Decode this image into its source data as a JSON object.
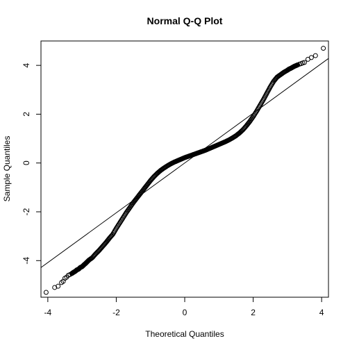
{
  "chart_data": {
    "type": "scatter",
    "title": "Normal Q-Q Plot",
    "xlabel": "Theoretical Quantiles",
    "ylabel": "Sample Quantiles",
    "xlim": [
      -4.2,
      4.2
    ],
    "ylim": [
      -5.5,
      5.0
    ],
    "x_ticks": [
      -4,
      -2,
      0,
      2,
      4
    ],
    "x_tick_labels": [
      "-4",
      "-2",
      "0",
      "2",
      "4"
    ],
    "y_ticks": [
      -4,
      -2,
      0,
      2,
      4
    ],
    "y_tick_labels": [
      "-4",
      "-2",
      "0",
      "2",
      "4"
    ],
    "reference_line": {
      "intercept": 0.0,
      "slope": 1.02
    },
    "grid": false,
    "legend": "none",
    "points": [
      [
        -4.05,
        -5.3
      ],
      [
        -3.8,
        -5.1
      ],
      [
        -3.7,
        -5.05
      ],
      [
        -3.6,
        -4.9
      ],
      [
        -3.55,
        -4.85
      ],
      [
        -3.5,
        -4.72
      ],
      [
        -3.45,
        -4.68
      ],
      [
        -3.4,
        -4.6
      ],
      [
        -3.35,
        -4.57
      ],
      [
        -3.3,
        -4.53
      ],
      [
        -3.25,
        -4.48
      ],
      [
        -3.2,
        -4.44
      ],
      [
        -3.15,
        -4.38
      ],
      [
        -3.1,
        -4.35
      ],
      [
        -3.05,
        -4.28
      ],
      [
        -3.0,
        -4.25
      ],
      [
        -2.95,
        -4.18
      ],
      [
        -2.9,
        -4.12
      ],
      [
        -2.85,
        -4.05
      ],
      [
        -2.8,
        -3.98
      ],
      [
        -2.7,
        -3.88
      ],
      [
        -2.6,
        -3.72
      ],
      [
        -2.5,
        -3.58
      ],
      [
        -2.4,
        -3.42
      ],
      [
        -2.3,
        -3.26
      ],
      [
        -2.2,
        -3.08
      ],
      [
        -2.1,
        -2.92
      ],
      [
        -2.0,
        -2.68
      ],
      [
        -1.9,
        -2.46
      ],
      [
        -1.8,
        -2.24
      ],
      [
        -1.7,
        -2.02
      ],
      [
        -1.6,
        -1.82
      ],
      [
        -1.5,
        -1.62
      ],
      [
        -1.4,
        -1.44
      ],
      [
        -1.3,
        -1.26
      ],
      [
        -1.2,
        -1.08
      ],
      [
        -1.1,
        -0.9
      ],
      [
        -1.0,
        -0.72
      ],
      [
        -0.9,
        -0.56
      ],
      [
        -0.8,
        -0.42
      ],
      [
        -0.7,
        -0.3
      ],
      [
        -0.6,
        -0.2
      ],
      [
        -0.5,
        -0.11
      ],
      [
        -0.4,
        -0.03
      ],
      [
        -0.3,
        0.04
      ],
      [
        -0.2,
        0.1
      ],
      [
        -0.1,
        0.16
      ],
      [
        0.0,
        0.22
      ],
      [
        0.1,
        0.27
      ],
      [
        0.2,
        0.32
      ],
      [
        0.3,
        0.37
      ],
      [
        0.4,
        0.42
      ],
      [
        0.5,
        0.47
      ],
      [
        0.6,
        0.52
      ],
      [
        0.7,
        0.58
      ],
      [
        0.8,
        0.64
      ],
      [
        0.9,
        0.7
      ],
      [
        1.0,
        0.76
      ],
      [
        1.1,
        0.82
      ],
      [
        1.2,
        0.88
      ],
      [
        1.3,
        0.95
      ],
      [
        1.4,
        1.03
      ],
      [
        1.5,
        1.12
      ],
      [
        1.6,
        1.23
      ],
      [
        1.7,
        1.36
      ],
      [
        1.8,
        1.52
      ],
      [
        1.9,
        1.7
      ],
      [
        2.0,
        1.9
      ],
      [
        2.1,
        2.12
      ],
      [
        2.2,
        2.36
      ],
      [
        2.3,
        2.6
      ],
      [
        2.4,
        2.86
      ],
      [
        2.5,
        3.12
      ],
      [
        2.6,
        3.35
      ],
      [
        2.7,
        3.52
      ],
      [
        2.8,
        3.62
      ],
      [
        2.9,
        3.72
      ],
      [
        3.0,
        3.8
      ],
      [
        3.05,
        3.85
      ],
      [
        3.1,
        3.88
      ],
      [
        3.15,
        3.92
      ],
      [
        3.2,
        3.96
      ],
      [
        3.25,
        3.99
      ],
      [
        3.3,
        4.02
      ],
      [
        3.35,
        4.05
      ],
      [
        3.4,
        4.07
      ],
      [
        3.45,
        4.1
      ],
      [
        3.5,
        4.12
      ],
      [
        3.6,
        4.25
      ],
      [
        3.7,
        4.32
      ],
      [
        3.82,
        4.4
      ],
      [
        4.05,
        4.7
      ]
    ]
  }
}
